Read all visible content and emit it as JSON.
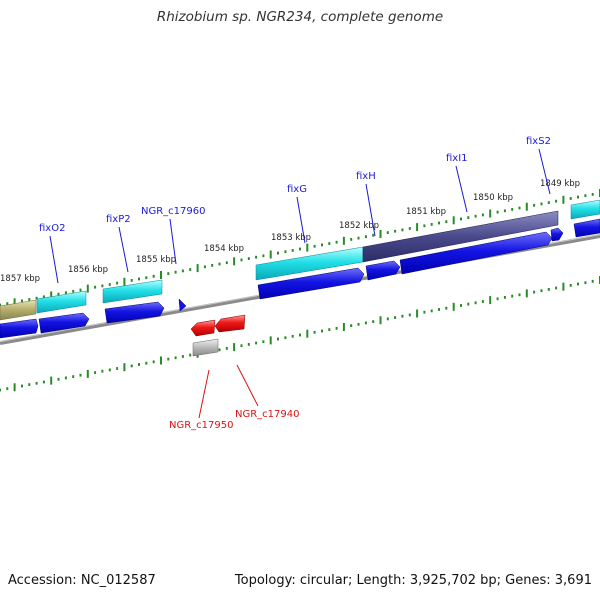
{
  "title": "Rhizobium sp. NGR234, complete genome",
  "footer": {
    "accession": "Accession: NC_012587",
    "summary": "Topology: circular; Length: 3,925,702 bp; Genes: 3,691"
  },
  "scale_labels": [
    "1857 kbp",
    "1856 kbp",
    "1855 kbp",
    "1854 kbp",
    "1853 kbp",
    "1852 kbp",
    "1851 kbp",
    "1850 kbp",
    "1849 kbp"
  ],
  "forward_gene_labels": [
    "fixO2",
    "fixP2",
    "NGR_c17960",
    "fixG",
    "fixH",
    "fixI1",
    "fixS2"
  ],
  "reverse_gene_labels": [
    "NGR_c17950",
    "NGR_c17940"
  ],
  "colors": {
    "forward_label": "#1a1adb",
    "reverse_label": "#dd1111",
    "gene_blue": "#1010e0",
    "cyan_feature": "#22d8e0",
    "olive_feature": "#b8b070",
    "purple_feature": "#4a4a8a",
    "reverse_gene": "#ee1111",
    "tick": "#2a8a2a",
    "backbone": "#888888"
  }
}
